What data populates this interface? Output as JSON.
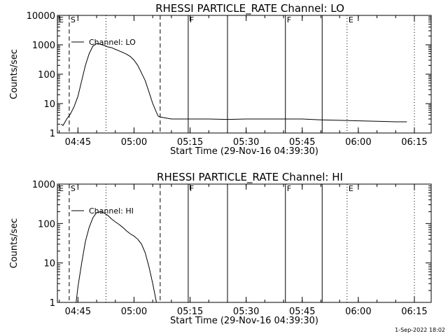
{
  "footer": {
    "timestamp": "1-Sep-2022 18:02"
  },
  "chart_data": [
    {
      "type": "line",
      "title": "RHESSI PARTICLE_RATE Channel: LO",
      "xlabel": "Start Time (29-Nov-16 04:39:30)",
      "ylabel": "Counts/sec",
      "ylog": true,
      "xlim": [
        "04:39:30",
        "06:19:30"
      ],
      "ylim": [
        1,
        10000
      ],
      "xticks": [
        "04:45",
        "05:00",
        "05:15",
        "05:30",
        "05:45",
        "06:00",
        "06:15"
      ],
      "yticks": [
        "1",
        "10",
        "100",
        "1000",
        "10000"
      ],
      "legend": {
        "entries": [
          "Channel: LO"
        ],
        "placement": "top-left"
      },
      "grid": false,
      "markers": [
        {
          "time": "04:42:40",
          "style": "dashed",
          "label": "S"
        },
        {
          "time": "04:52:30",
          "style": "dotted",
          "label": ""
        },
        {
          "time": "05:07:00",
          "style": "dashed",
          "label": ""
        },
        {
          "time": "05:14:30",
          "style": "solid",
          "label": "F"
        },
        {
          "time": "05:25:00",
          "style": "solid",
          "label": ""
        },
        {
          "time": "05:40:30",
          "style": "solid",
          "label": "F"
        },
        {
          "time": "05:50:20",
          "style": "solid",
          "label": ""
        },
        {
          "time": "05:57:00",
          "style": "dotted",
          "label": "E"
        },
        {
          "time": "06:15:00",
          "style": "dotted",
          "label": ""
        }
      ],
      "flag_letters": [
        "E"
      ],
      "series": [
        {
          "x": [
            "04:40:30",
            "04:41:00",
            "04:42:00",
            "04:43:00",
            "04:44:00",
            "04:45:00",
            "04:46:00",
            "04:47:00",
            "04:48:00",
            "04:49:00",
            "04:50:00",
            "04:51:00",
            "04:52:00",
            "04:53:00",
            "04:54:00",
            "04:55:00",
            "04:56:00",
            "04:57:00",
            "04:58:00",
            "04:59:00",
            "05:00:00",
            "05:01:00",
            "05:02:00",
            "05:03:00",
            "05:04:00",
            "05:05:00",
            "05:06:00",
            "05:06:30",
            "05:07:00",
            "05:10:00",
            "05:15:00",
            "05:20:00",
            "05:25:00",
            "05:30:00",
            "05:35:00",
            "05:40:00",
            "05:45:00",
            "05:50:00",
            "05:55:00",
            "06:00:00",
            "06:05:00",
            "06:10:00",
            "06:13:00"
          ],
          "y": [
            2.0,
            1.8,
            3.0,
            4.5,
            8.0,
            18,
            60,
            200,
            500,
            900,
            1100,
            1050,
            950,
            850,
            800,
            700,
            620,
            550,
            480,
            400,
            300,
            200,
            110,
            60,
            25,
            10,
            5,
            3.7,
            3.5,
            3.0,
            3.0,
            3.0,
            2.9,
            3.0,
            3.0,
            3.0,
            3.0,
            2.8,
            2.7,
            2.6,
            2.5,
            2.4,
            2.4
          ]
        }
      ]
    },
    {
      "type": "line",
      "title": "RHESSI PARTICLE_RATE Channel: HI",
      "xlabel": "Start Time (29-Nov-16 04:39:30)",
      "ylabel": "Counts/sec",
      "ylog": true,
      "xlim": [
        "04:39:30",
        "06:19:30"
      ],
      "ylim": [
        1,
        1000
      ],
      "xticks": [
        "04:45",
        "05:00",
        "05:15",
        "05:30",
        "05:45",
        "06:00",
        "06:15"
      ],
      "yticks": [
        "1",
        "10",
        "100",
        "1000"
      ],
      "legend": {
        "entries": [
          "Channel: HI"
        ],
        "placement": "top-left"
      },
      "grid": false,
      "markers": [
        {
          "time": "04:42:40",
          "style": "dashed",
          "label": "S"
        },
        {
          "time": "04:52:30",
          "style": "dotted",
          "label": ""
        },
        {
          "time": "05:07:00",
          "style": "dashed",
          "label": ""
        },
        {
          "time": "05:14:30",
          "style": "solid",
          "label": "F"
        },
        {
          "time": "05:25:00",
          "style": "solid",
          "label": ""
        },
        {
          "time": "05:40:30",
          "style": "solid",
          "label": "F"
        },
        {
          "time": "05:50:20",
          "style": "solid",
          "label": ""
        },
        {
          "time": "05:57:00",
          "style": "dotted",
          "label": "E"
        },
        {
          "time": "06:15:00",
          "style": "dotted",
          "label": ""
        }
      ],
      "flag_letters": [
        "E"
      ],
      "series": [
        {
          "x": [
            "04:44:30",
            "04:45:00",
            "04:46:00",
            "04:47:00",
            "04:48:00",
            "04:49:00",
            "04:50:00",
            "04:51:00",
            "04:52:00",
            "04:53:00",
            "04:54:00",
            "04:55:00",
            "04:56:00",
            "04:57:00",
            "04:58:00",
            "04:59:00",
            "05:00:00",
            "05:01:00",
            "05:02:00",
            "05:03:00",
            "05:04:00",
            "05:05:00",
            "05:06:00"
          ],
          "y": [
            1.0,
            2.5,
            10,
            35,
            80,
            140,
            190,
            200,
            185,
            160,
            130,
            110,
            95,
            80,
            65,
            55,
            48,
            40,
            30,
            18,
            8,
            3,
            1.0
          ]
        }
      ]
    }
  ]
}
